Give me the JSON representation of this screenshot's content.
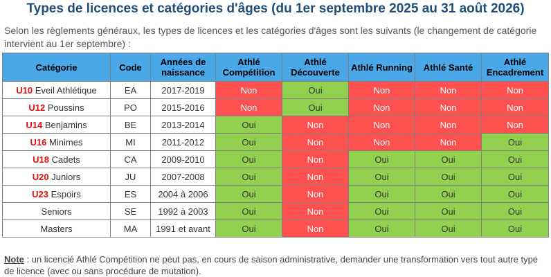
{
  "title": "Types de licences et catégories d'âges (du 1er septembre 2025 au 31 août 2026)",
  "intro": "Selon les règlements généraux, les types de licences et les catégories d'âges sont les suivants (le changement de catégorie intervient au 1er septembre) :",
  "table": {
    "headers": {
      "categorie": "Catégorie",
      "code": "Code",
      "annees": "Années de naissance",
      "competition": "Athlé Compétition",
      "decouverte": "Athlé Découverte",
      "running": "Athlé Running",
      "sante": "Athlé Santé",
      "encadrement": "Athlé Encadrement"
    },
    "rows": [
      {
        "u": "U10",
        "name": "Eveil Athlétique",
        "code": "EA",
        "years": "2017-2019",
        "competition": "Non",
        "decouverte": "Oui",
        "running": "Non",
        "sante": "Non",
        "encadrement": "Non"
      },
      {
        "u": "U12",
        "name": "Poussins",
        "code": "PO",
        "years": "2015-2016",
        "competition": "Non",
        "decouverte": "Oui",
        "running": "Non",
        "sante": "Non",
        "encadrement": "Non"
      },
      {
        "u": "U14",
        "name": "Benjamins",
        "code": "BE",
        "years": "2013-2014",
        "competition": "Oui",
        "decouverte": "Non",
        "running": "Non",
        "sante": "Non",
        "encadrement": "Non"
      },
      {
        "u": "U16",
        "name": "Minimes",
        "code": "MI",
        "years": "2011-2012",
        "competition": "Oui",
        "decouverte": "Non",
        "running": "Non",
        "sante": "Non",
        "encadrement": "Oui"
      },
      {
        "u": "U18",
        "name": "Cadets",
        "code": "CA",
        "years": "2009-2010",
        "competition": "Oui",
        "decouverte": "Non",
        "running": "Oui",
        "sante": "Oui",
        "encadrement": "Oui"
      },
      {
        "u": "U20",
        "name": "Juniors",
        "code": "JU",
        "years": "2007-2008",
        "competition": "Oui",
        "decouverte": "Non",
        "running": "Oui",
        "sante": "Oui",
        "encadrement": "Oui"
      },
      {
        "u": "U23",
        "name": "Espoirs",
        "code": "ES",
        "years": "2004 à 2006",
        "competition": "Oui",
        "decouverte": "Non",
        "running": "Oui",
        "sante": "Oui",
        "encadrement": "Oui"
      },
      {
        "u": "",
        "name": "Seniors",
        "code": "SE",
        "years": "1992 à 2003",
        "competition": "Oui",
        "decouverte": "Non",
        "running": "Oui",
        "sante": "Oui",
        "encadrement": "Oui"
      },
      {
        "u": "",
        "name": "Masters",
        "code": "MA",
        "years": "1991 et avant",
        "competition": "Oui",
        "decouverte": "Non",
        "running": "Oui",
        "sante": "Oui",
        "encadrement": "Oui"
      }
    ]
  },
  "note": {
    "label": "Note",
    "text": " : un licencié Athlé Compétition ne peut pas, en cours de saison administrative, demander une transformation vers tout autre type de licence (avec ou sans procédure de mutation)."
  },
  "colors": {
    "header_bg": "#4aa8e8",
    "non_bg": "#ff5050",
    "oui_bg": "#92d050",
    "title": "#1f4e79",
    "u_code": "#e01010"
  }
}
